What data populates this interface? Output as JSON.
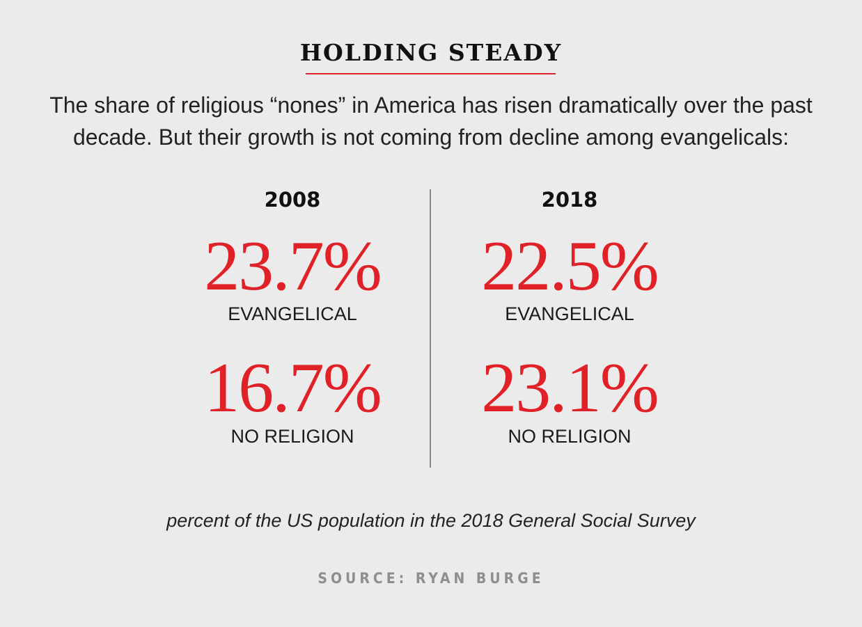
{
  "chart_data": {
    "type": "table",
    "title": "HOLDING STEADY",
    "subtitle": "The share of religious “nones” in America has risen dramatically over the past decade. But their growth is not coming from decline among evangelicals:",
    "columns": [
      {
        "year": "2008",
        "rows": [
          {
            "value_label": "23.7%",
            "value": 23.7,
            "label": "EVANGELICAL"
          },
          {
            "value_label": "16.7%",
            "value": 16.7,
            "label": "NO RELIGION"
          }
        ]
      },
      {
        "year": "2018",
        "rows": [
          {
            "value_label": "22.5%",
            "value": 22.5,
            "label": "EVANGELICAL"
          },
          {
            "value_label": "23.1%",
            "value": 23.1,
            "label": "NO RELIGION"
          }
        ]
      }
    ],
    "note": "percent of the US population in the 2018 General Social Survey",
    "source": "SOURCE: RYAN BURGE",
    "colors": {
      "accent": "#e02127",
      "background": "#ebebeb",
      "divider": "#8a8a8a",
      "source_text": "#8e8e8e"
    }
  }
}
